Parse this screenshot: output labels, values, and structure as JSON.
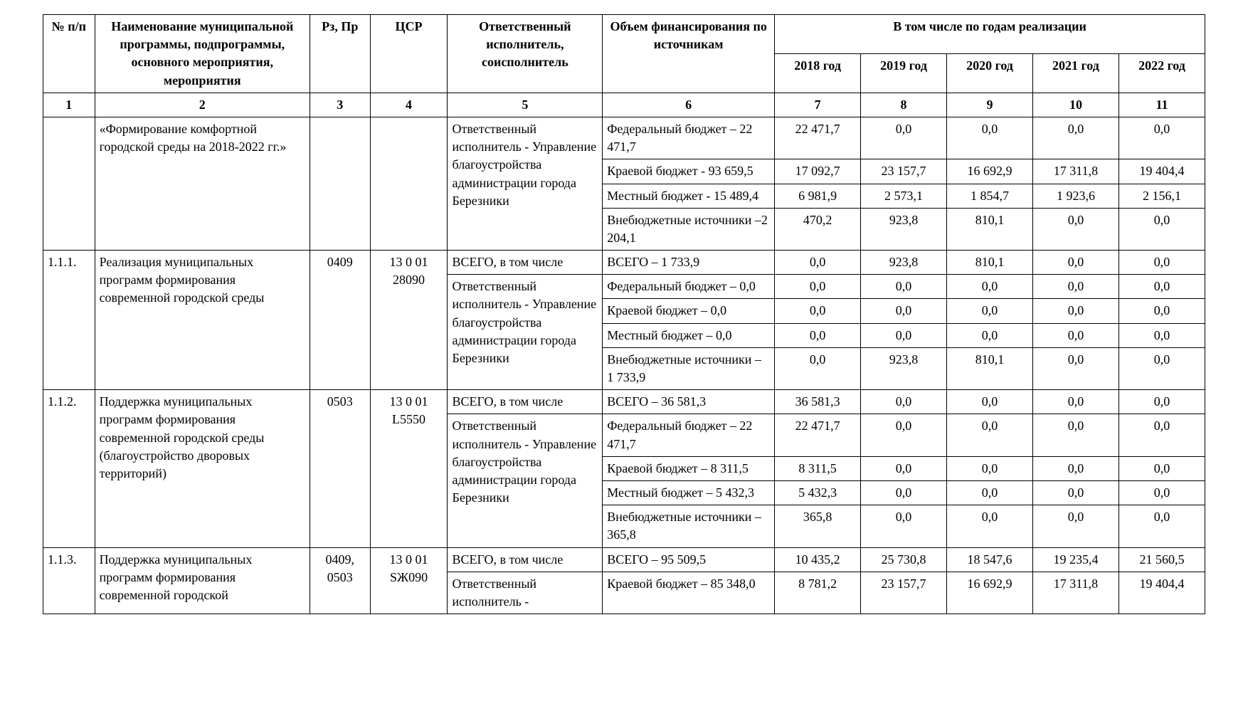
{
  "headers": {
    "col1": "№ п/п",
    "col2": "Наименование муниципальной программы, подпрограммы, основного мероприятия, мероприятия",
    "col3": "Рз, Пр",
    "col4": "ЦСР",
    "col5": "Ответственный исполнитель, соисполнитель",
    "col6": "Объем финансирования по источникам",
    "col_years_group": "В том числе по годам реализации",
    "year1": "2018 год",
    "year2": "2019 год",
    "year3": "2020 год",
    "year4": "2021 год",
    "year5": "2022 год",
    "hn1": "1",
    "hn2": "2",
    "hn3": "3",
    "hn4": "4",
    "hn5": "5",
    "hn6": "6",
    "hn7": "7",
    "hn8": "8",
    "hn9": "9",
    "hn10": "10",
    "hn11": "11"
  },
  "r0": {
    "name": "«Формирование комфортной городской среды на 2018-2022 гг.»",
    "exec": "Ответственный исполнитель - Управление благоустройства администрации города Березники",
    "src1": "Федеральный бюджет – 22 471,7",
    "src2": "Краевой бюджет - 93 659,5",
    "src3": "Местный бюджет - 15 489,4",
    "src4": "Внебюджетные источники –2 204,1",
    "v1": [
      "22 471,7",
      "0,0",
      "0,0",
      "0,0",
      "0,0"
    ],
    "v2": [
      "17 092,7",
      "23 157,7",
      "16 692,9",
      "17 311,8",
      "19 404,4"
    ],
    "v3": [
      "6 981,9",
      "2 573,1",
      "1 854,7",
      "1 923,6",
      "2 156,1"
    ],
    "v4": [
      "470,2",
      "923,8",
      "810,1",
      "0,0",
      "0,0"
    ]
  },
  "r1": {
    "num": "1.1.1.",
    "name": "Реализация муниципальных программ формирования современной городской среды",
    "rz": "0409",
    "csr": "13 0 01 28090",
    "exec1": "ВСЕГО,\nв том числе",
    "exec2": "Ответственный исполнитель - Управление благоустройства администрации города Березники",
    "src1": "ВСЕГО – 1 733,9",
    "src2": "Федеральный бюджет – 0,0",
    "src3": "Краевой бюджет – 0,0",
    "src4": "Местный бюджет – 0,0",
    "src5": "Внебюджетные источники – 1 733,9",
    "v1": [
      "0,0",
      "923,8",
      "810,1",
      "0,0",
      "0,0"
    ],
    "v2": [
      "0,0",
      "0,0",
      "0,0",
      "0,0",
      "0,0"
    ],
    "v3": [
      "0,0",
      "0,0",
      "0,0",
      "0,0",
      "0,0"
    ],
    "v4": [
      "0,0",
      "0,0",
      "0,0",
      "0,0",
      "0,0"
    ],
    "v5": [
      "0,0",
      "923,8",
      "810,1",
      "0,0",
      "0,0"
    ]
  },
  "r2": {
    "num": "1.1.2.",
    "name": "Поддержка муниципальных программ формирования современной городской среды (благоустройство дворовых территорий)",
    "rz": "0503",
    "csr": "13 0 01 L5550",
    "exec1": "ВСЕГО,\nв том числе",
    "exec2": "Ответственный исполнитель - Управление благоустройства администрации города Березники",
    "src1": "ВСЕГО – 36 581,3",
    "src2": "Федеральный бюджет – 22 471,7",
    "src3": "Краевой бюджет – 8 311,5",
    "src4": "Местный бюджет – 5 432,3",
    "src5": "Внебюджетные источники – 365,8",
    "v1": [
      "36 581,3",
      "0,0",
      "0,0",
      "0,0",
      "0,0"
    ],
    "v2": [
      "22 471,7",
      "0,0",
      "0,0",
      "0,0",
      "0,0"
    ],
    "v3": [
      "8 311,5",
      "0,0",
      "0,0",
      "0,0",
      "0,0"
    ],
    "v4": [
      "5 432,3",
      "0,0",
      "0,0",
      "0,0",
      "0,0"
    ],
    "v5": [
      "365,8",
      "0,0",
      "0,0",
      "0,0",
      "0,0"
    ]
  },
  "r3": {
    "num": "1.1.3.",
    "name": "Поддержка муниципальных программ формирования современной городской",
    "rz": "0409, 0503",
    "csr": "13 0 01 SЖ090",
    "exec1": "ВСЕГО,\nв том числе",
    "exec2": "Ответственный исполнитель -",
    "src1": "ВСЕГО – 95 509,5",
    "src2": "Краевой бюджет – 85 348,0",
    "v1": [
      "10 435,2",
      "25 730,8",
      "18 547,6",
      "19 235,4",
      "21 560,5"
    ],
    "v2": [
      "8 781,2",
      "23 157,7",
      "16 692,9",
      "17 311,8",
      "19 404,4"
    ]
  }
}
